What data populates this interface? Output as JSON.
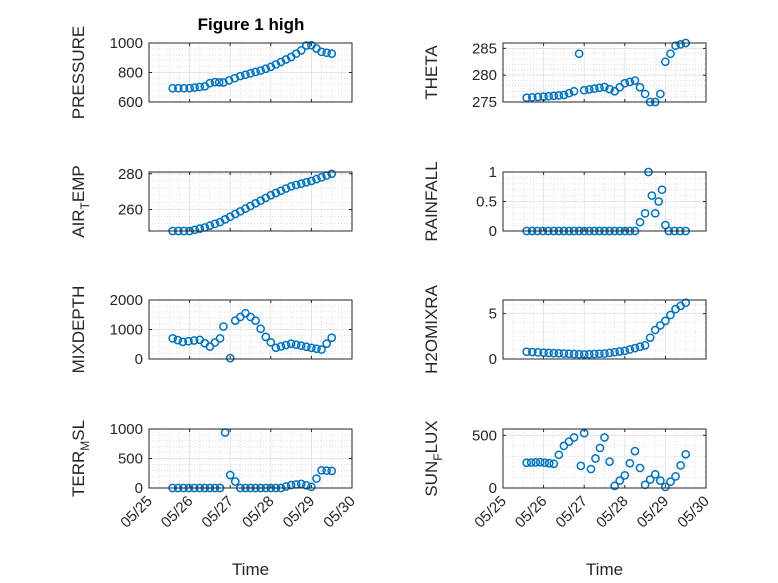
{
  "figure": {
    "title": "Figure 1 high",
    "xlabel": "Time",
    "marker_color": "#0072BD",
    "axis_color": "#262626",
    "grid_color": "#c8c8c8"
  },
  "chart_data": [
    {
      "type": "scatter",
      "ylabel": "PRESSURE",
      "xlim": [
        "05/25",
        "05/30"
      ],
      "ylim": [
        600,
        1000
      ],
      "yticks": [
        "600",
        "800",
        "1000"
      ],
      "grid": true,
      "x": [
        "05/25 14:00",
        "05/26 00:00",
        "05/26 09:00",
        "05/26 12:00",
        "05/26 15:00",
        "05/26 20:00",
        "05/27 06:00",
        "05/27 18:00",
        "05/28 00:00",
        "05/28 06:00",
        "05/28 12:00",
        "05/28 18:00",
        "05/28 21:00",
        "05/29 00:00",
        "05/29 06:00",
        "05/29 12:00"
      ],
      "y": [
        693,
        694,
        706,
        728,
        735,
        732,
        776,
        813,
        838,
        871,
        905,
        950,
        983,
        985,
        940,
        928
      ]
    },
    {
      "type": "scatter",
      "ylabel": "THETA",
      "xlim": [
        "05/25",
        "05/30"
      ],
      "ylim": [
        275,
        286
      ],
      "yticks": [
        "275",
        "280",
        "285"
      ],
      "grid": true,
      "x": [
        "05/25 14:00",
        "05/26 00:00",
        "05/26 12:00",
        "05/26 18:00",
        "05/26 21:00",
        "05/27 00:00",
        "05/27 12:00",
        "05/27 18:00",
        "05/28 00:00",
        "05/28 06:00",
        "05/28 12:00",
        "05/28 15:00",
        "05/28 18:00",
        "05/28 21:00",
        "05/29 00:00",
        "05/29 06:00",
        "05/29 12:00"
      ],
      "y": [
        275.8,
        276.0,
        276.3,
        277.0,
        284.0,
        277.2,
        277.8,
        277.0,
        278.5,
        279.0,
        276.5,
        274.5,
        274.0,
        276.5,
        282.5,
        285.5,
        286.0
      ]
    },
    {
      "type": "scatter",
      "ylabel": "AIR_TEMP",
      "xlim": [
        "05/25",
        "05/30"
      ],
      "ylim": [
        248,
        281
      ],
      "yticks": [
        "260",
        "280"
      ],
      "grid": true,
      "x": [
        "05/25 14:00",
        "05/26 00:00",
        "05/26 09:00",
        "05/26 18:00",
        "05/27 00:00",
        "05/27 12:00",
        "05/28 00:00",
        "05/28 12:00",
        "05/29 00:00",
        "05/29 12:00"
      ],
      "y": [
        248,
        248,
        250,
        253,
        256,
        262,
        268,
        273,
        276,
        280
      ]
    },
    {
      "type": "scatter",
      "ylabel": "RAINFALL",
      "xlim": [
        "05/25",
        "05/30"
      ],
      "ylim": [
        0,
        1
      ],
      "yticks": [
        "0",
        "0.5",
        "1"
      ],
      "grid": true,
      "x": [
        "05/25 14:00",
        "05/26 06:00",
        "05/27 00:00",
        "05/27 18:00",
        "05/28 06:00",
        "05/28 12:00",
        "05/28 14:00",
        "05/28 16:00",
        "05/28 18:00",
        "05/28 20:00",
        "05/28 22:00",
        "05/29 00:00",
        "05/29 02:00",
        "05/29 12:00"
      ],
      "y": [
        0,
        0,
        0,
        0,
        0,
        0.3,
        1.0,
        0.6,
        0.3,
        0.5,
        0.7,
        0.1,
        0,
        0
      ]
    },
    {
      "type": "scatter",
      "ylabel": "MIXDEPTH",
      "xlim": [
        "05/25",
        "05/30"
      ],
      "ylim": [
        0,
        2000
      ],
      "yticks": [
        "0",
        "1000",
        "2000"
      ],
      "grid": true,
      "x": [
        "05/25 14:00",
        "05/25 20:00",
        "05/26 06:00",
        "05/26 12:00",
        "05/26 18:00",
        "05/26 20:00",
        "05/27 00:00",
        "05/27 03:00",
        "05/27 09:00",
        "05/27 15:00",
        "05/27 21:00",
        "05/28 03:00",
        "05/28 12:00",
        "05/28 18:00",
        "05/29 00:00",
        "05/29 06:00",
        "05/29 12:00"
      ],
      "y": [
        700,
        580,
        650,
        420,
        700,
        1100,
        30,
        1300,
        1550,
        1300,
        750,
        380,
        520,
        450,
        380,
        320,
        720
      ]
    },
    {
      "type": "scatter",
      "ylabel": "H2OMIXRA",
      "xlim": [
        "05/25",
        "05/30"
      ],
      "ylim": [
        0,
        6.5
      ],
      "yticks": [
        "0",
        "5"
      ],
      "grid": true,
      "x": [
        "05/25 14:00",
        "05/26 00:00",
        "05/26 12:00",
        "05/27 00:00",
        "05/27 12:00",
        "05/28 00:00",
        "05/28 12:00",
        "05/28 18:00",
        "05/29 00:00",
        "05/29 06:00",
        "05/29 12:00"
      ],
      "y": [
        0.8,
        0.7,
        0.6,
        0.5,
        0.6,
        0.9,
        1.5,
        3.2,
        4.2,
        5.5,
        6.2
      ]
    },
    {
      "type": "scatter",
      "ylabel": "TERR_MSL",
      "xlim": [
        "05/25",
        "05/30"
      ],
      "ylim": [
        0,
        1000
      ],
      "yticks": [
        "0",
        "500",
        "1000"
      ],
      "grid": true,
      "x": [
        "05/25 14:00",
        "05/26 06:00",
        "05/26 18:00",
        "05/26 21:00",
        "05/27 00:00",
        "05/27 06:00",
        "05/27 18:00",
        "05/28 06:00",
        "05/28 12:00",
        "05/28 18:00",
        "05/29 00:00",
        "05/29 06:00",
        "05/29 12:00"
      ],
      "y": [
        0,
        0,
        0,
        940,
        220,
        0,
        0,
        0,
        50,
        70,
        20,
        300,
        290
      ]
    },
    {
      "type": "scatter",
      "ylabel": "SUN_FLUX",
      "xlim": [
        "05/25",
        "05/30"
      ],
      "ylim": [
        0,
        560
      ],
      "yticks": [
        "0",
        "500"
      ],
      "grid": true,
      "x": [
        "05/25 14:00",
        "05/25 22:00",
        "05/26 06:00",
        "05/26 12:00",
        "05/26 18:00",
        "05/26 22:00",
        "05/27 00:00",
        "05/27 04:00",
        "05/27 12:00",
        "05/27 18:00",
        "05/28 00:00",
        "05/28 06:00",
        "05/28 12:00",
        "05/28 18:00",
        "05/29 00:00",
        "05/29 06:00",
        "05/29 12:00"
      ],
      "y": [
        240,
        245,
        230,
        400,
        480,
        210,
        520,
        180,
        480,
        20,
        120,
        350,
        30,
        130,
        10,
        110,
        320
      ]
    }
  ]
}
